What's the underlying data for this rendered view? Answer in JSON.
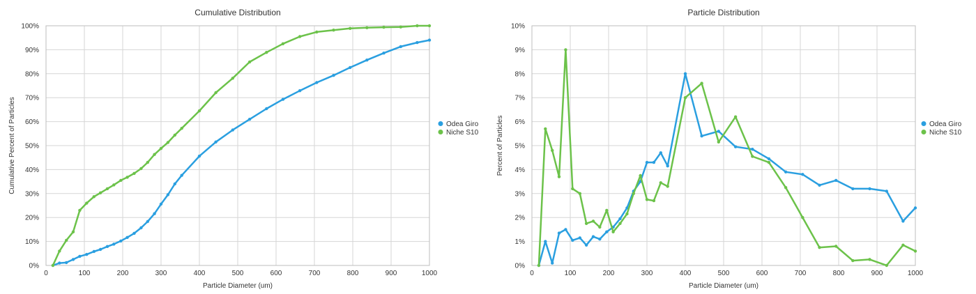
{
  "colors": {
    "odea": "#2a9fe0",
    "niche": "#6cc24a"
  },
  "chart_data": [
    {
      "type": "line",
      "title": "Cumulative Distribution",
      "xlabel": "Particle Diameter (um)",
      "ylabel": "Cumulative Percent of Particles",
      "xlim": [
        0,
        1000
      ],
      "ylim": [
        0,
        100
      ],
      "xticks": [
        0,
        100,
        200,
        300,
        400,
        500,
        600,
        700,
        800,
        900,
        1000
      ],
      "yticks": [
        0,
        10,
        20,
        30,
        40,
        50,
        60,
        70,
        80,
        90,
        100
      ],
      "ytick_suffix": "%",
      "grid": true,
      "legend": "right",
      "series": [
        {
          "name": "Odea Giro",
          "color": "#2a9fe0",
          "x": [
            18,
            35,
            53,
            71,
            88,
            106,
            125,
            142,
            160,
            177,
            195,
            212,
            230,
            248,
            265,
            283,
            300,
            318,
            336,
            354,
            400,
            443,
            487,
            531,
            575,
            618,
            662,
            706,
            750,
            793,
            837,
            881,
            925,
            968,
            1000
          ],
          "y": [
            0,
            1,
            1.2,
            2.5,
            3.8,
            4.6,
            5.8,
            6.7,
            7.9,
            8.9,
            10.2,
            11.7,
            13.4,
            15.7,
            18.3,
            21.6,
            25.6,
            29.5,
            34,
            37.6,
            45.6,
            51.5,
            56.5,
            61,
            65.4,
            69.3,
            72.9,
            76.3,
            79.3,
            82.6,
            85.7,
            88.6,
            91.3,
            93,
            94
          ]
        },
        {
          "name": "Niche S10",
          "color": "#6cc24a",
          "x": [
            18,
            35,
            53,
            71,
            88,
            106,
            125,
            142,
            160,
            177,
            195,
            212,
            230,
            248,
            265,
            283,
            300,
            318,
            336,
            354,
            400,
            443,
            487,
            531,
            575,
            618,
            662,
            706,
            750,
            793,
            837,
            881,
            925,
            968,
            1000
          ],
          "y": [
            0,
            6,
            10.5,
            14,
            23,
            26,
            28.7,
            30.3,
            32,
            33.6,
            35.5,
            36.8,
            38.4,
            40.4,
            43,
            46.3,
            48.8,
            51.3,
            54.4,
            57.2,
            64.5,
            72.1,
            78.1,
            84.9,
            88.9,
            92.5,
            95.5,
            97.4,
            98.2,
            98.9,
            99.2,
            99.4,
            99.5,
            100,
            100
          ]
        }
      ]
    },
    {
      "type": "line",
      "title": "Particle Distribution",
      "xlabel": "Particle Diameter (um)",
      "ylabel": "Percent of Particles",
      "xlim": [
        0,
        1000
      ],
      "ylim": [
        0,
        10
      ],
      "xticks": [
        0,
        100,
        200,
        300,
        400,
        500,
        600,
        700,
        800,
        900,
        1000
      ],
      "yticks": [
        0,
        1,
        2,
        3,
        4,
        5,
        6,
        7,
        8,
        9,
        10
      ],
      "ytick_suffix": "%",
      "grid": true,
      "legend": "right",
      "series": [
        {
          "name": "Odea Giro",
          "color": "#2a9fe0",
          "x": [
            18,
            35,
            53,
            71,
            88,
            106,
            125,
            142,
            160,
            177,
            195,
            212,
            230,
            248,
            265,
            283,
            300,
            318,
            336,
            354,
            400,
            443,
            487,
            531,
            575,
            618,
            662,
            706,
            750,
            793,
            837,
            881,
            925,
            968,
            1000
          ],
          "y": [
            0,
            1.0,
            0.1,
            1.35,
            1.5,
            1.05,
            1.15,
            0.85,
            1.2,
            1.1,
            1.4,
            1.6,
            1.95,
            2.4,
            3.1,
            3.5,
            4.3,
            4.3,
            4.7,
            4.15,
            8.0,
            5.4,
            5.6,
            4.95,
            4.85,
            4.45,
            3.9,
            3.8,
            3.35,
            3.55,
            3.2,
            3.2,
            3.1,
            1.85,
            2.4
          ]
        },
        {
          "name": "Niche S10",
          "color": "#6cc24a",
          "x": [
            18,
            35,
            53,
            71,
            88,
            106,
            125,
            142,
            160,
            177,
            195,
            212,
            230,
            248,
            265,
            283,
            300,
            318,
            336,
            354,
            400,
            443,
            487,
            531,
            575,
            618,
            662,
            706,
            750,
            793,
            837,
            881,
            925,
            968,
            1000
          ],
          "y": [
            0,
            5.7,
            4.8,
            3.7,
            9.0,
            3.2,
            3.0,
            1.75,
            1.85,
            1.6,
            2.3,
            1.4,
            1.75,
            2.15,
            3.0,
            3.75,
            2.75,
            2.7,
            3.45,
            3.3,
            7.0,
            7.6,
            5.15,
            6.2,
            4.55,
            4.3,
            3.25,
            2.0,
            0.75,
            0.8,
            0.2,
            0.25,
            0.0,
            0.85,
            0.6
          ]
        }
      ]
    }
  ]
}
